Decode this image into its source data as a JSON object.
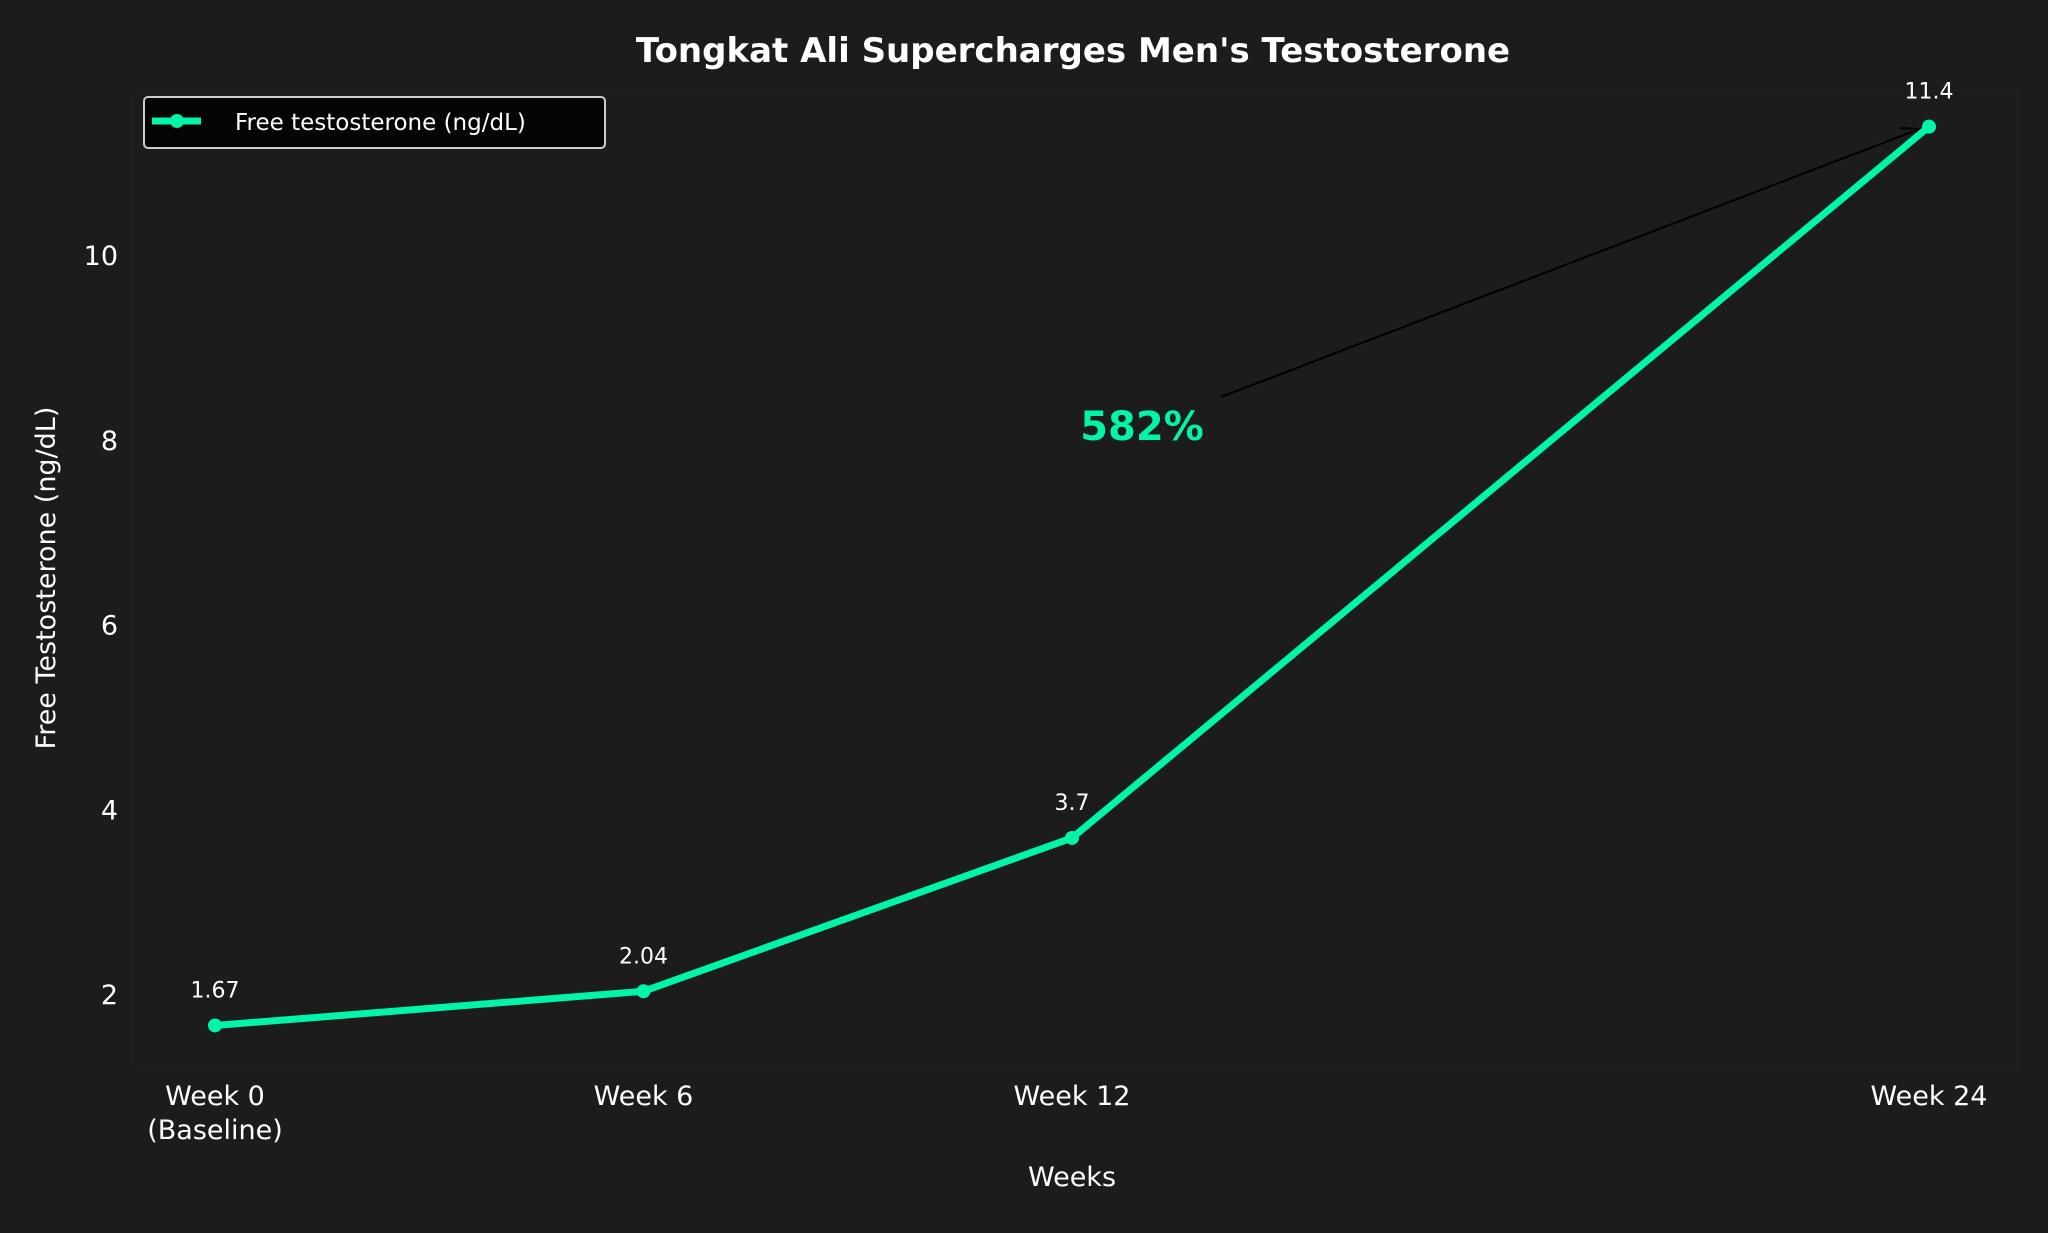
{
  "chart_data": {
    "type": "line",
    "title": "Tongkat Ali Supercharges Men's Testosterone",
    "xlabel": "Weeks",
    "ylabel": "Free Testosterone (ng/dL)",
    "x": [
      0,
      6,
      12,
      24
    ],
    "x_tick_labels": [
      "Week 0\n(Baseline)",
      "Week 6",
      "Week 12",
      "Week 24"
    ],
    "y_ticks": [
      2,
      4,
      6,
      8,
      10
    ],
    "ylim": [
      1.2,
      11.95
    ],
    "xlim": [
      -1.8,
      25.6
    ],
    "grid": false,
    "legend_position": "top-left",
    "series": [
      {
        "name": "Free testosterone (ng/dL)",
        "values": [
          1.67,
          2.04,
          3.7,
          11.4
        ],
        "data_labels": [
          "1.67",
          "2.04",
          "3.7",
          "11.4"
        ],
        "color": "#00f5a8"
      }
    ],
    "annotation": {
      "text": "582%",
      "color": "#00f5a8",
      "points_to": {
        "x": 24,
        "y": 11.4
      },
      "arrow_color": "#000000"
    },
    "background": "#1c1c1c"
  }
}
